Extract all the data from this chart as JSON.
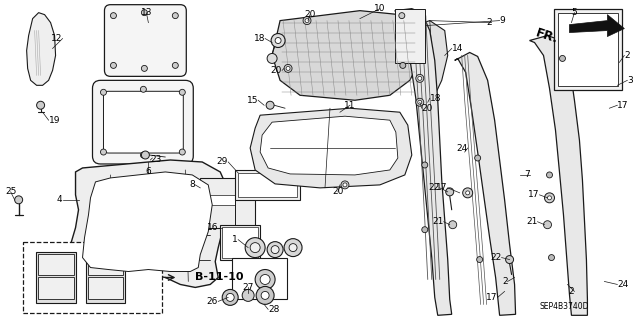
{
  "bg_color": "#ffffff",
  "diagram_code": "SEP4B3740D",
  "fr_label": "FR.",
  "fig_width": 6.4,
  "fig_height": 3.19,
  "dpi": 100,
  "line_color": "#1a1a1a",
  "text_color": "#000000",
  "font_size": 6.5,
  "b_label": "B-11-10"
}
